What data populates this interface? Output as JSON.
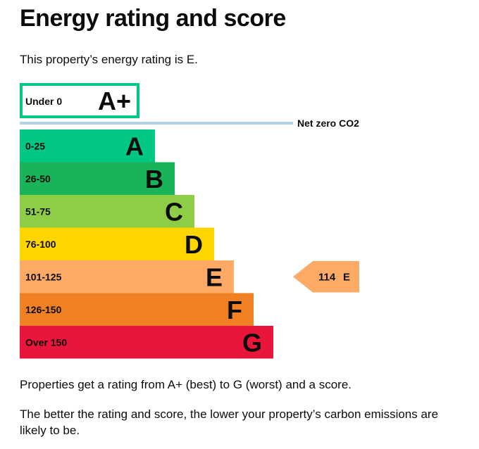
{
  "page": {
    "title": "Energy rating and score",
    "intro": "This property’s energy rating is E.",
    "paragraph1": "Properties get a rating from A+ (best) to G (worst) and a score.",
    "paragraph2": "The better the rating and score, the lower your property’s carbon emissions are likely to be."
  },
  "chart_data": {
    "type": "bar",
    "bands": [
      {
        "range": "Under 0",
        "letter": "A+",
        "min": -1,
        "max": 0,
        "color": "#00c781",
        "style": "outline"
      },
      {
        "range": "0-25",
        "letter": "A",
        "min": 0,
        "max": 25,
        "color": "#00c781"
      },
      {
        "range": "26-50",
        "letter": "B",
        "min": 26,
        "max": 50,
        "color": "#19b459"
      },
      {
        "range": "51-75",
        "letter": "C",
        "min": 51,
        "max": 75,
        "color": "#8dce46"
      },
      {
        "range": "76-100",
        "letter": "D",
        "min": 76,
        "max": 100,
        "color": "#ffd500"
      },
      {
        "range": "101-125",
        "letter": "E",
        "min": 101,
        "max": 125,
        "color": "#fcaa65"
      },
      {
        "range": "126-150",
        "letter": "F",
        "min": 126,
        "max": 150,
        "color": "#ef8023"
      },
      {
        "range": "Over 150",
        "letter": "G",
        "min": 151,
        "max": null,
        "color": "#e9153b"
      }
    ],
    "net_zero_label": "Net zero CO2",
    "net_zero_line_color": "#b1d3e8",
    "current": {
      "score": 114,
      "rating": "E",
      "color": "#fcaa65"
    }
  }
}
